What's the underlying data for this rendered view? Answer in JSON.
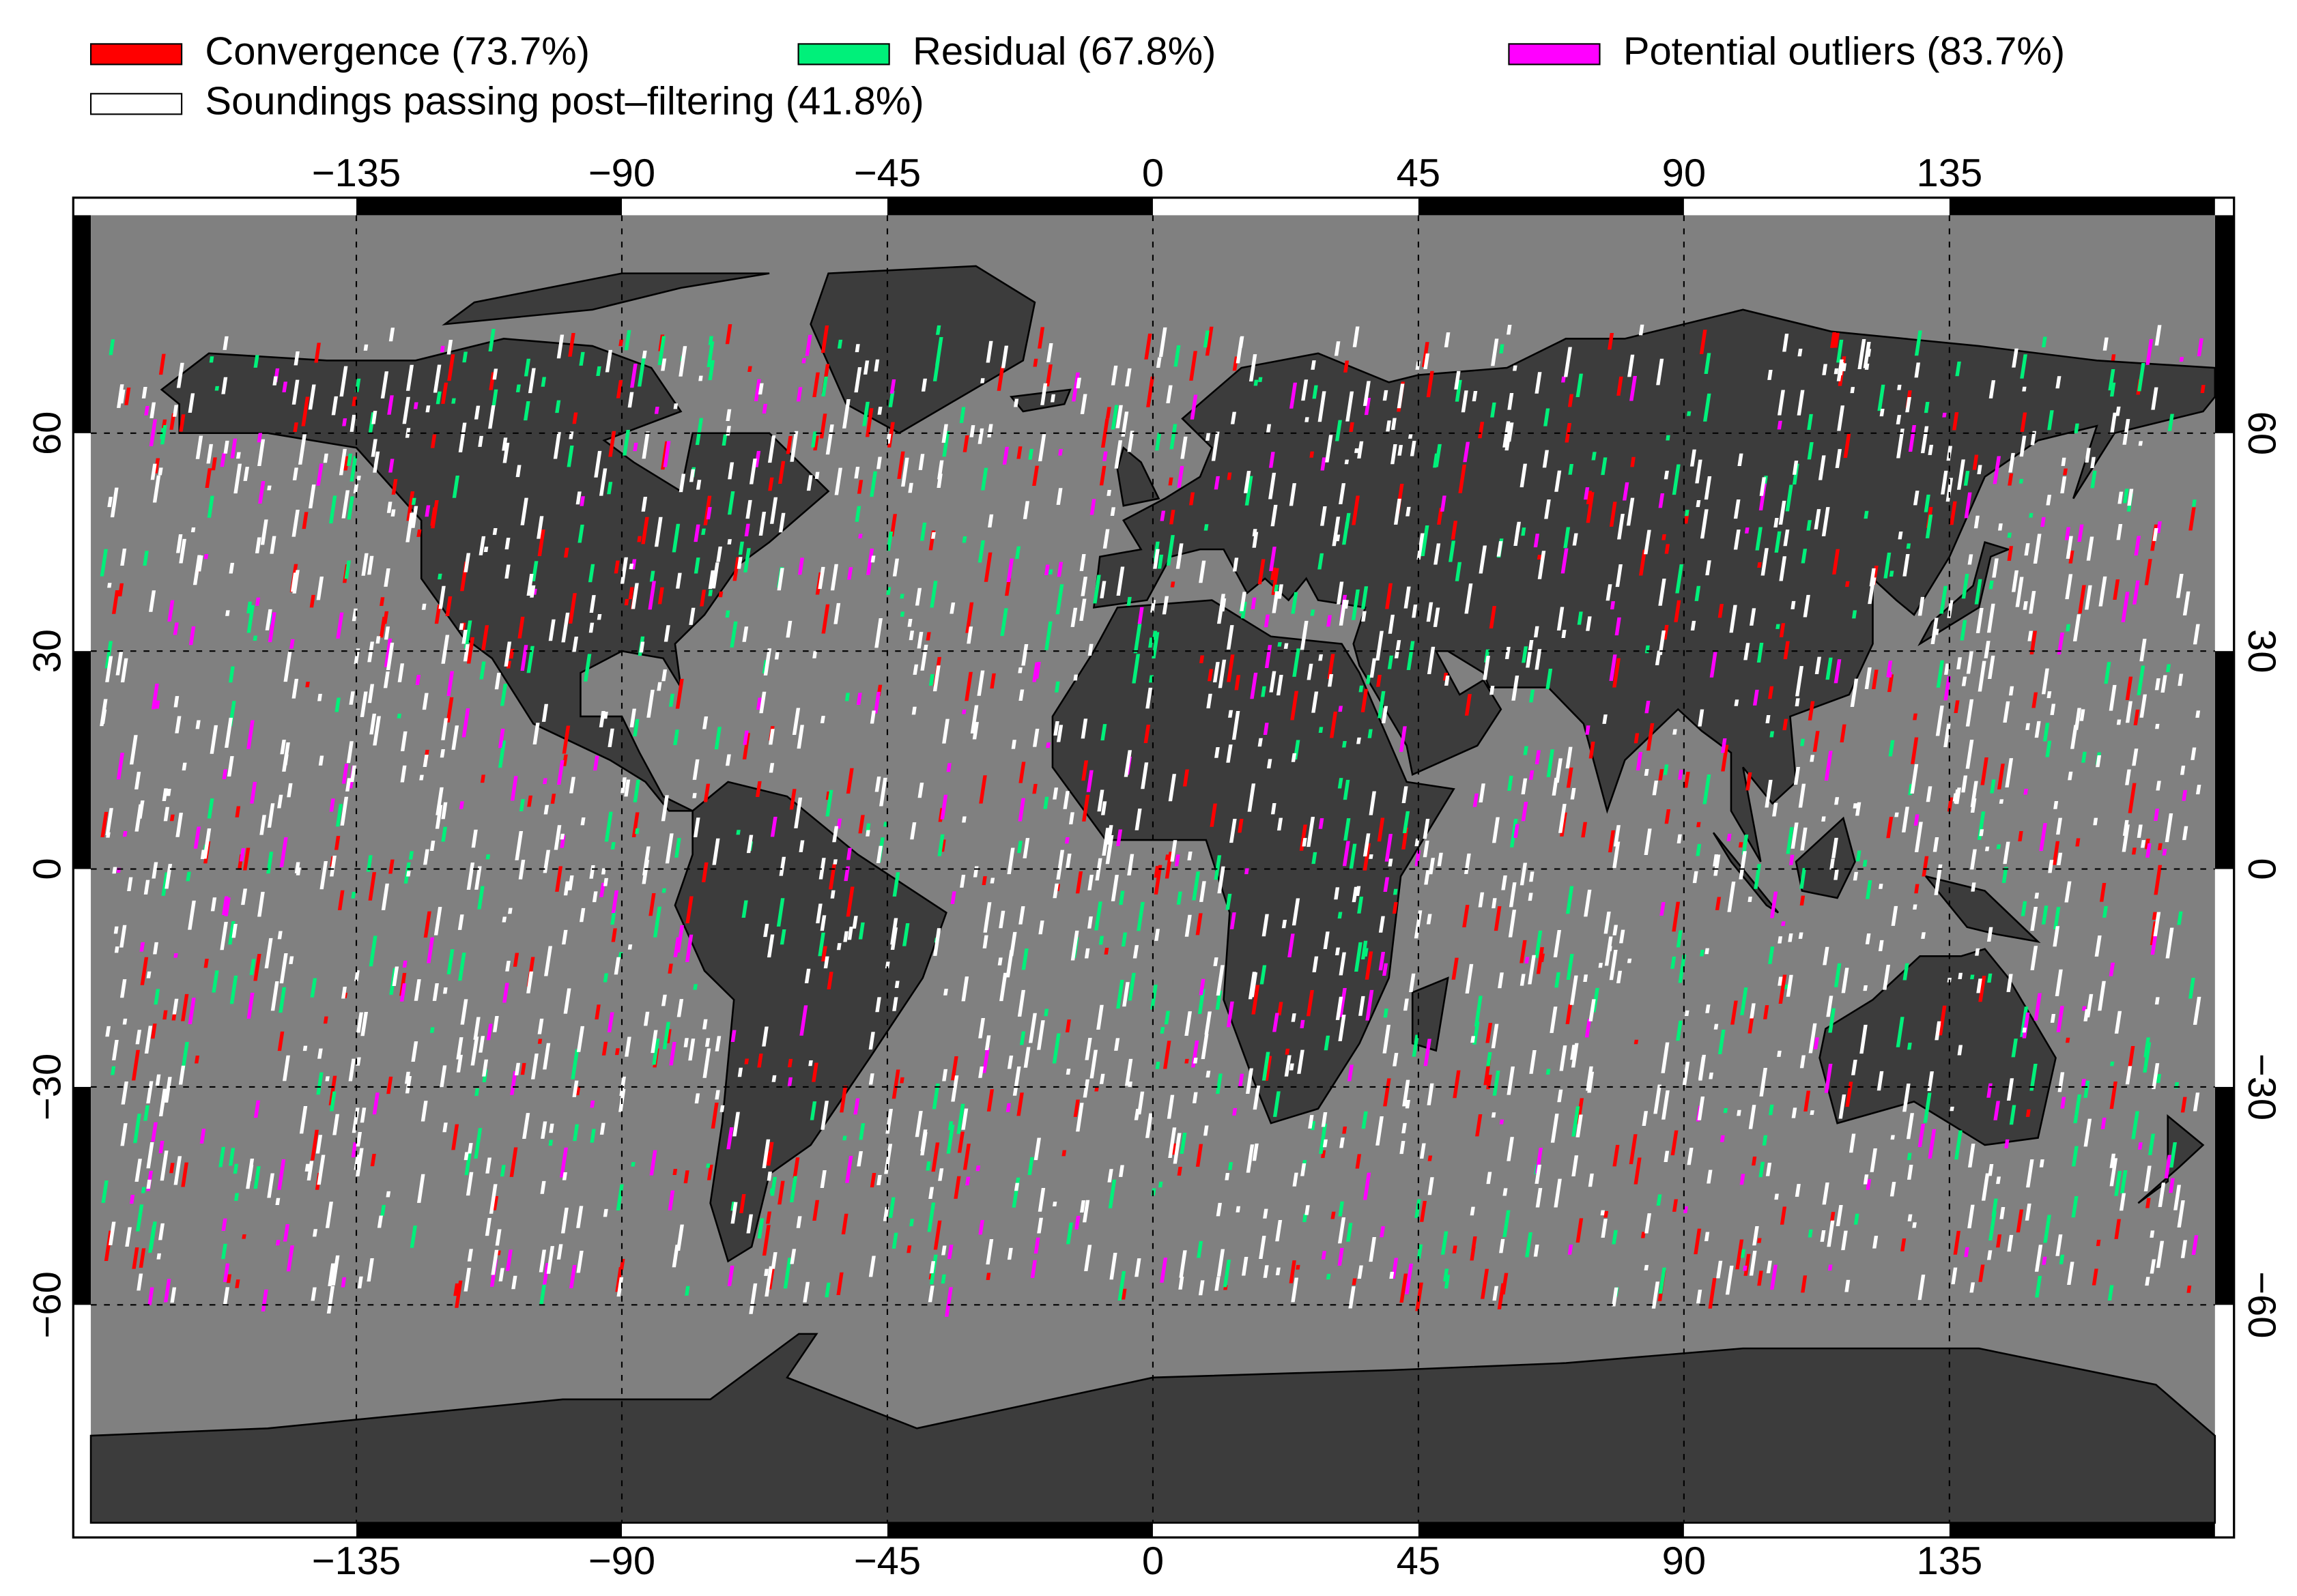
{
  "legend": {
    "items": [
      {
        "label": "Convergence (73.7%)",
        "color": "#ff0000"
      },
      {
        "label": "Residual (67.8%)",
        "color": "#00f07a"
      },
      {
        "label": "Potential outliers (83.7%)",
        "color": "#ff00ff"
      },
      {
        "label": "Soundings passing post–filtering (41.8%)",
        "color": "#ffffff"
      }
    ]
  },
  "map": {
    "xlim": [
      -180,
      180
    ],
    "ylim": [
      -90,
      90
    ],
    "xticks": [
      {
        "value": -135,
        "label": "−135"
      },
      {
        "value": -90,
        "label": "−90"
      },
      {
        "value": -45,
        "label": "−45"
      },
      0,
      45,
      90,
      135
    ],
    "yticks": [
      {
        "value": -60,
        "label": "−60"
      },
      {
        "value": -30,
        "label": "−30"
      },
      0,
      30,
      60
    ],
    "grid": true
  }
}
